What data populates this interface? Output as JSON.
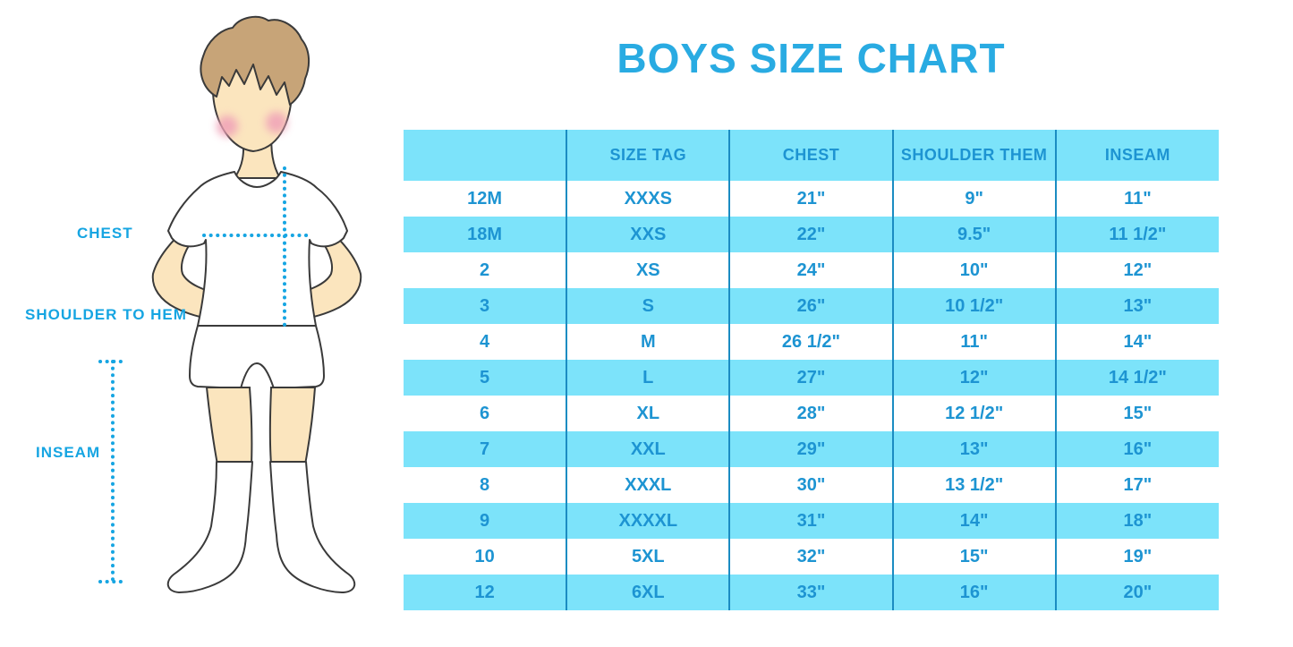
{
  "title": "BOYS SIZE CHART",
  "colors": {
    "accent": "#29ABE2",
    "label_blue": "#16A5E2",
    "cyan": "#7CE3FA",
    "table_text": "#1D94D2",
    "divider": "#1B8CC2",
    "skin": "#FBE5BE",
    "hair": "#C7A478",
    "blush": "#F0A2B8",
    "outline": "#3A3A3A"
  },
  "diagram": {
    "labels": {
      "chest": "CHEST",
      "shoulder_to_hem": "SHOULDER TO HEM",
      "inseam": "INSEAM"
    }
  },
  "chart_data": {
    "type": "table",
    "title": "BOYS SIZE CHART",
    "columns": [
      "",
      "SIZE TAG",
      "CHEST",
      "SHOULDER THEM",
      "INSEAM"
    ],
    "rows": [
      [
        "12M",
        "XXXS",
        "21\"",
        "9\"",
        "11\""
      ],
      [
        "18M",
        "XXS",
        "22\"",
        "9.5\"",
        "11 1/2\""
      ],
      [
        "2",
        "XS",
        "24\"",
        "10\"",
        "12\""
      ],
      [
        "3",
        "S",
        "26\"",
        "10 1/2\"",
        "13\""
      ],
      [
        "4",
        "M",
        "26 1/2\"",
        "11\"",
        "14\""
      ],
      [
        "5",
        "L",
        "27\"",
        "12\"",
        "14 1/2\""
      ],
      [
        "6",
        "XL",
        "28\"",
        "12 1/2\"",
        "15\""
      ],
      [
        "7",
        "XXL",
        "29\"",
        "13\"",
        "16\""
      ],
      [
        "8",
        "XXXL",
        "30\"",
        "13 1/2\"",
        "17\""
      ],
      [
        "9",
        "XXXXL",
        "31\"",
        "14\"",
        "18\""
      ],
      [
        "10",
        "5XL",
        "32\"",
        "15\"",
        "19\""
      ],
      [
        "12",
        "6XL",
        "33\"",
        "16\"",
        "20\""
      ]
    ],
    "layout": {
      "row_striping": "white/cyan alternating starting white",
      "grid": "vertical column dividers only",
      "legend": "none"
    }
  }
}
